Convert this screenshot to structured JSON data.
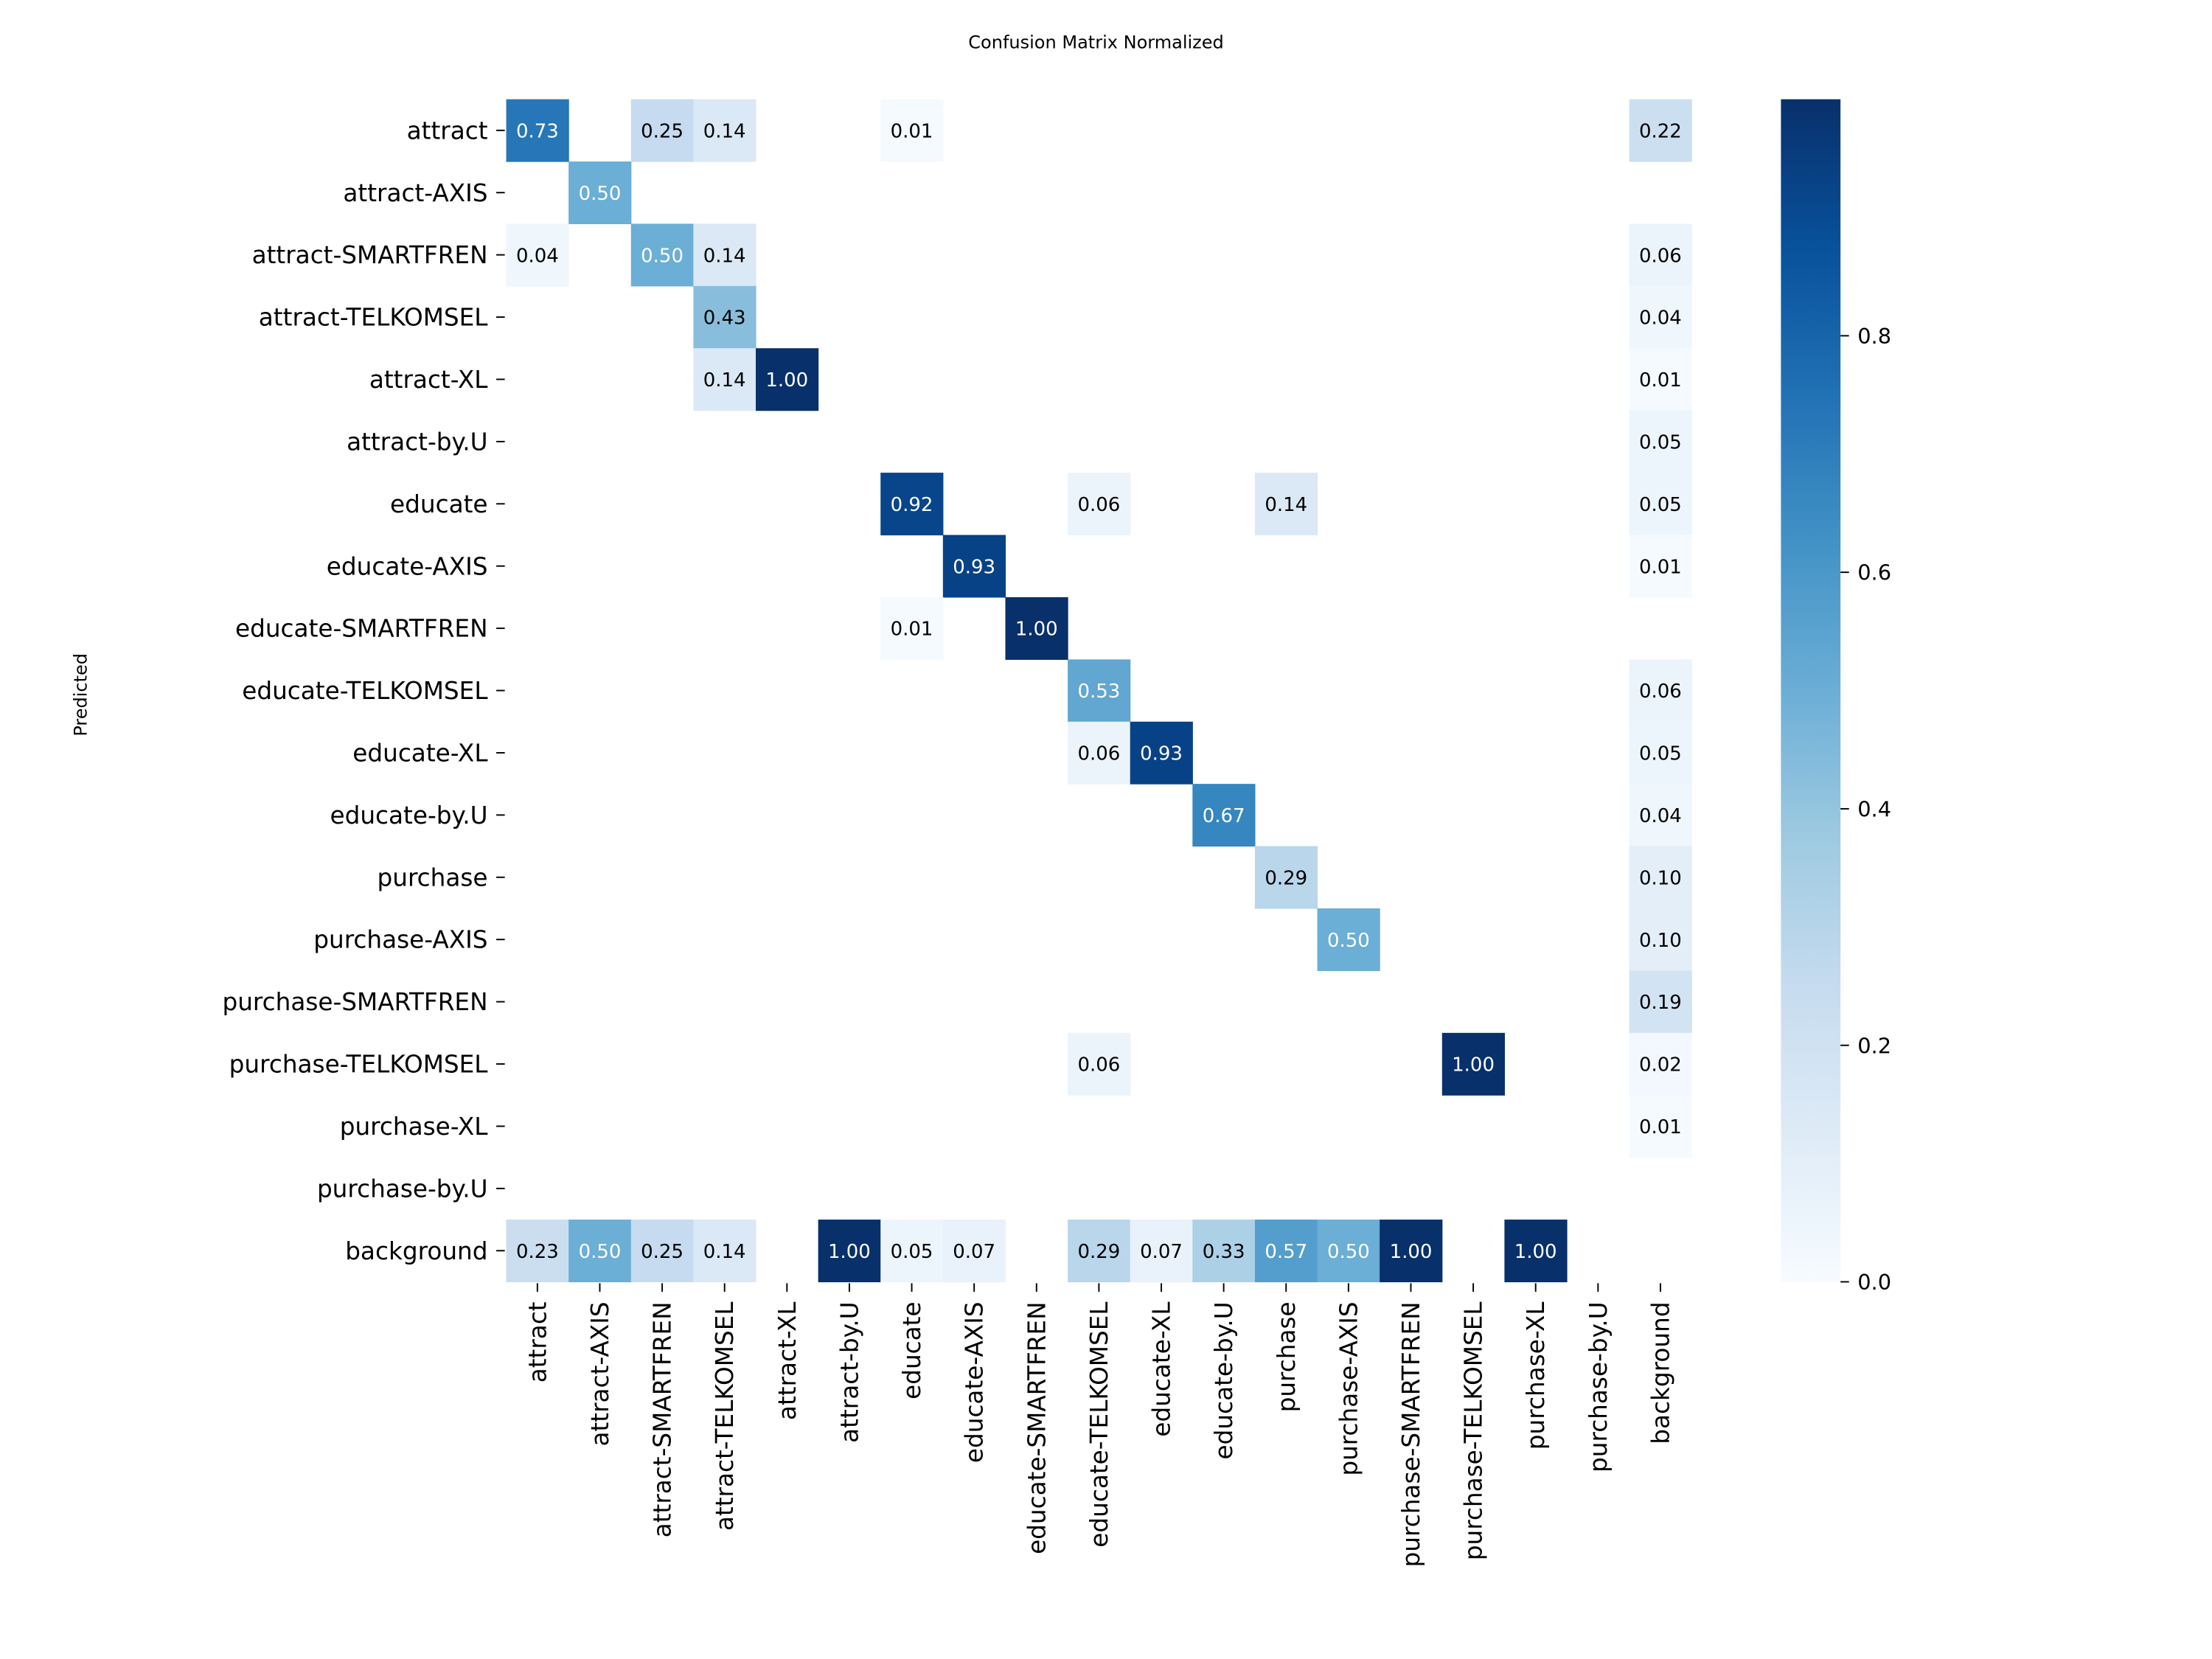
{
  "chart_data": {
    "type": "heatmap",
    "title": "Confusion Matrix Normalized",
    "ylabel": "Predicted",
    "xlabel": "",
    "colormap": "Blues",
    "vmin": 0.0,
    "vmax": 1.0,
    "colorbar_ticks": [
      0.0,
      0.2,
      0.4,
      0.6,
      0.8
    ],
    "colorbar_tick_labels": [
      "0.0",
      "0.2",
      "0.4",
      "0.6",
      "0.8"
    ],
    "labels": [
      "attract",
      "attract-AXIS",
      "attract-SMARTFREN",
      "attract-TELKOMSEL",
      "attract-XL",
      "attract-by.U",
      "educate",
      "educate-AXIS",
      "educate-SMARTFREN",
      "educate-TELKOMSEL",
      "educate-XL",
      "educate-by.U",
      "purchase",
      "purchase-AXIS",
      "purchase-SMARTFREN",
      "purchase-TELKOMSEL",
      "purchase-XL",
      "purchase-by.U",
      "background"
    ],
    "matrix": [
      [
        0.73,
        null,
        0.25,
        0.14,
        null,
        null,
        0.01,
        null,
        null,
        null,
        null,
        null,
        null,
        null,
        null,
        null,
        null,
        null,
        0.22
      ],
      [
        null,
        0.5,
        null,
        null,
        null,
        null,
        null,
        null,
        null,
        null,
        null,
        null,
        null,
        null,
        null,
        null,
        null,
        null,
        null
      ],
      [
        0.04,
        null,
        0.5,
        0.14,
        null,
        null,
        null,
        null,
        null,
        null,
        null,
        null,
        null,
        null,
        null,
        null,
        null,
        null,
        0.06
      ],
      [
        null,
        null,
        null,
        0.43,
        null,
        null,
        null,
        null,
        null,
        null,
        null,
        null,
        null,
        null,
        null,
        null,
        null,
        null,
        0.04
      ],
      [
        null,
        null,
        null,
        0.14,
        1.0,
        null,
        null,
        null,
        null,
        null,
        null,
        null,
        null,
        null,
        null,
        null,
        null,
        null,
        0.01
      ],
      [
        null,
        null,
        null,
        null,
        null,
        null,
        null,
        null,
        null,
        null,
        null,
        null,
        null,
        null,
        null,
        null,
        null,
        null,
        0.05
      ],
      [
        null,
        null,
        null,
        null,
        null,
        null,
        0.92,
        null,
        null,
        0.06,
        null,
        null,
        0.14,
        null,
        null,
        null,
        null,
        null,
        0.05
      ],
      [
        null,
        null,
        null,
        null,
        null,
        null,
        null,
        0.93,
        null,
        null,
        null,
        null,
        null,
        null,
        null,
        null,
        null,
        null,
        0.01
      ],
      [
        null,
        null,
        null,
        null,
        null,
        null,
        0.01,
        null,
        1.0,
        null,
        null,
        null,
        null,
        null,
        null,
        null,
        null,
        null,
        null
      ],
      [
        null,
        null,
        null,
        null,
        null,
        null,
        null,
        null,
        null,
        0.53,
        null,
        null,
        null,
        null,
        null,
        null,
        null,
        null,
        0.06
      ],
      [
        null,
        null,
        null,
        null,
        null,
        null,
        null,
        null,
        null,
        0.06,
        0.93,
        null,
        null,
        null,
        null,
        null,
        null,
        null,
        0.05
      ],
      [
        null,
        null,
        null,
        null,
        null,
        null,
        null,
        null,
        null,
        null,
        null,
        0.67,
        null,
        null,
        null,
        null,
        null,
        null,
        0.04
      ],
      [
        null,
        null,
        null,
        null,
        null,
        null,
        null,
        null,
        null,
        null,
        null,
        null,
        0.29,
        null,
        null,
        null,
        null,
        null,
        0.1
      ],
      [
        null,
        null,
        null,
        null,
        null,
        null,
        null,
        null,
        null,
        null,
        null,
        null,
        null,
        0.5,
        null,
        null,
        null,
        null,
        0.1
      ],
      [
        null,
        null,
        null,
        null,
        null,
        null,
        null,
        null,
        null,
        null,
        null,
        null,
        null,
        null,
        null,
        null,
        null,
        null,
        0.19
      ],
      [
        null,
        null,
        null,
        null,
        null,
        null,
        null,
        null,
        null,
        0.06,
        null,
        null,
        null,
        null,
        null,
        1.0,
        null,
        null,
        0.02
      ],
      [
        null,
        null,
        null,
        null,
        null,
        null,
        null,
        null,
        null,
        null,
        null,
        null,
        null,
        null,
        null,
        null,
        null,
        null,
        0.01
      ],
      [
        null,
        null,
        null,
        null,
        null,
        null,
        null,
        null,
        null,
        null,
        null,
        null,
        null,
        null,
        null,
        null,
        null,
        null,
        null
      ],
      [
        0.23,
        0.5,
        0.25,
        0.14,
        null,
        1.0,
        0.05,
        0.07,
        null,
        0.29,
        0.07,
        0.33,
        0.57,
        0.5,
        1.0,
        null,
        1.0,
        null,
        null
      ]
    ]
  }
}
